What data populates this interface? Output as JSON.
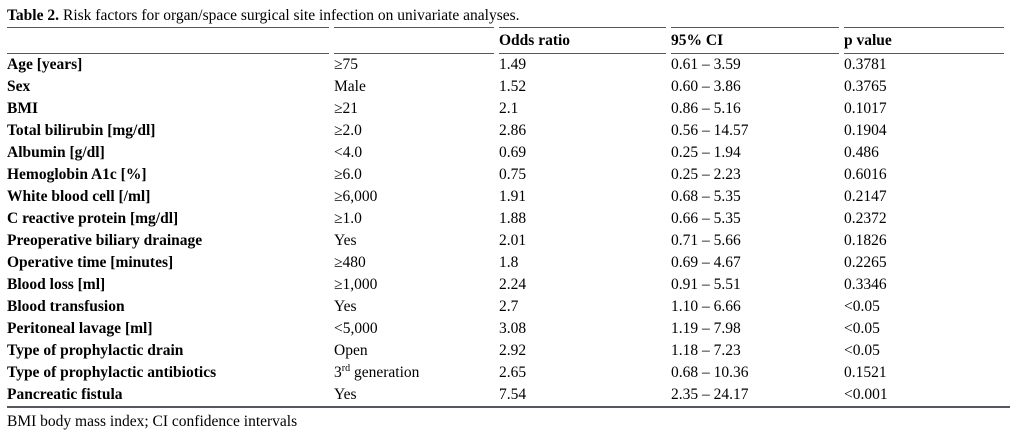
{
  "title": {
    "label": "Table 2.",
    "text": "Risk factors for organ/space surgical site infection on univariate analyses."
  },
  "table": {
    "headers": [
      "",
      "",
      "Odds ratio",
      "95% CI",
      "p value"
    ],
    "rows": [
      {
        "factor": "Age [years]",
        "category": "≥75",
        "odds_ratio": "1.49",
        "ci": "0.61 – 3.59",
        "p": "0.3781"
      },
      {
        "factor": "Sex",
        "category": "Male",
        "odds_ratio": "1.52",
        "ci": "0.60 – 3.86",
        "p": "0.3765"
      },
      {
        "factor": "BMI",
        "category": "≥21",
        "odds_ratio": "2.1",
        "ci": "0.86 – 5.16",
        "p": "0.1017"
      },
      {
        "factor": "Total bilirubin [mg/dl]",
        "category": "≥2.0",
        "odds_ratio": "2.86",
        "ci": "0.56 – 14.57",
        "p": "0.1904"
      },
      {
        "factor": "Albumin [g/dl]",
        "category": "<4.0",
        "odds_ratio": "0.69",
        "ci": "0.25 – 1.94",
        "p": "0.486"
      },
      {
        "factor": "Hemoglobin A1c [%]",
        "category": "≥6.0",
        "odds_ratio": "0.75",
        "ci": "0.25 – 2.23",
        "p": "0.6016"
      },
      {
        "factor": "White blood cell [/ml]",
        "category": "≥6,000",
        "odds_ratio": "1.91",
        "ci": "0.68 – 5.35",
        "p": "0.2147"
      },
      {
        "factor": "C reactive protein [mg/dl]",
        "category": "≥1.0",
        "odds_ratio": "1.88",
        "ci": "0.66 – 5.35",
        "p": "0.2372"
      },
      {
        "factor": "Preoperative biliary drainage",
        "category": "Yes",
        "odds_ratio": "2.01",
        "ci": "0.71 – 5.66",
        "p": "0.1826"
      },
      {
        "factor": "Operative time [minutes]",
        "category": "≥480",
        "odds_ratio": "1.8",
        "ci": "0.69 – 4.67",
        "p": "0.2265"
      },
      {
        "factor": "Blood loss [ml]",
        "category": "≥1,000",
        "odds_ratio": "2.24",
        "ci": "0.91 – 5.51",
        "p": "0.3346"
      },
      {
        "factor": "Blood transfusion",
        "category": "Yes",
        "odds_ratio": "2.7",
        "ci": "1.10 – 6.66",
        "p": "<0.05"
      },
      {
        "factor": "Peritoneal lavage [ml]",
        "category": "<5,000",
        "odds_ratio": "3.08",
        "ci": "1.19 – 7.98",
        "p": "<0.05"
      },
      {
        "factor": "Type of prophylactic drain",
        "category": "Open",
        "odds_ratio": "2.92",
        "ci": "1.18 – 7.23",
        "p": "<0.05"
      },
      {
        "factor": "Type of prophylactic antibiotics",
        "category": {
          "pre": "3",
          "sup": "rd",
          "post": " generation"
        },
        "odds_ratio": "2.65",
        "ci": "0.68 – 10.36",
        "p": "0.1521"
      },
      {
        "factor": "Pancreatic fistula",
        "category": "Yes",
        "odds_ratio": "7.54",
        "ci": "2.35 – 24.17",
        "p": "<0.001"
      }
    ]
  },
  "footnote": "BMI body mass index; CI confidence intervals",
  "colors": {
    "background": "#ffffff",
    "text": "#000000",
    "rule": "#55595f"
  }
}
